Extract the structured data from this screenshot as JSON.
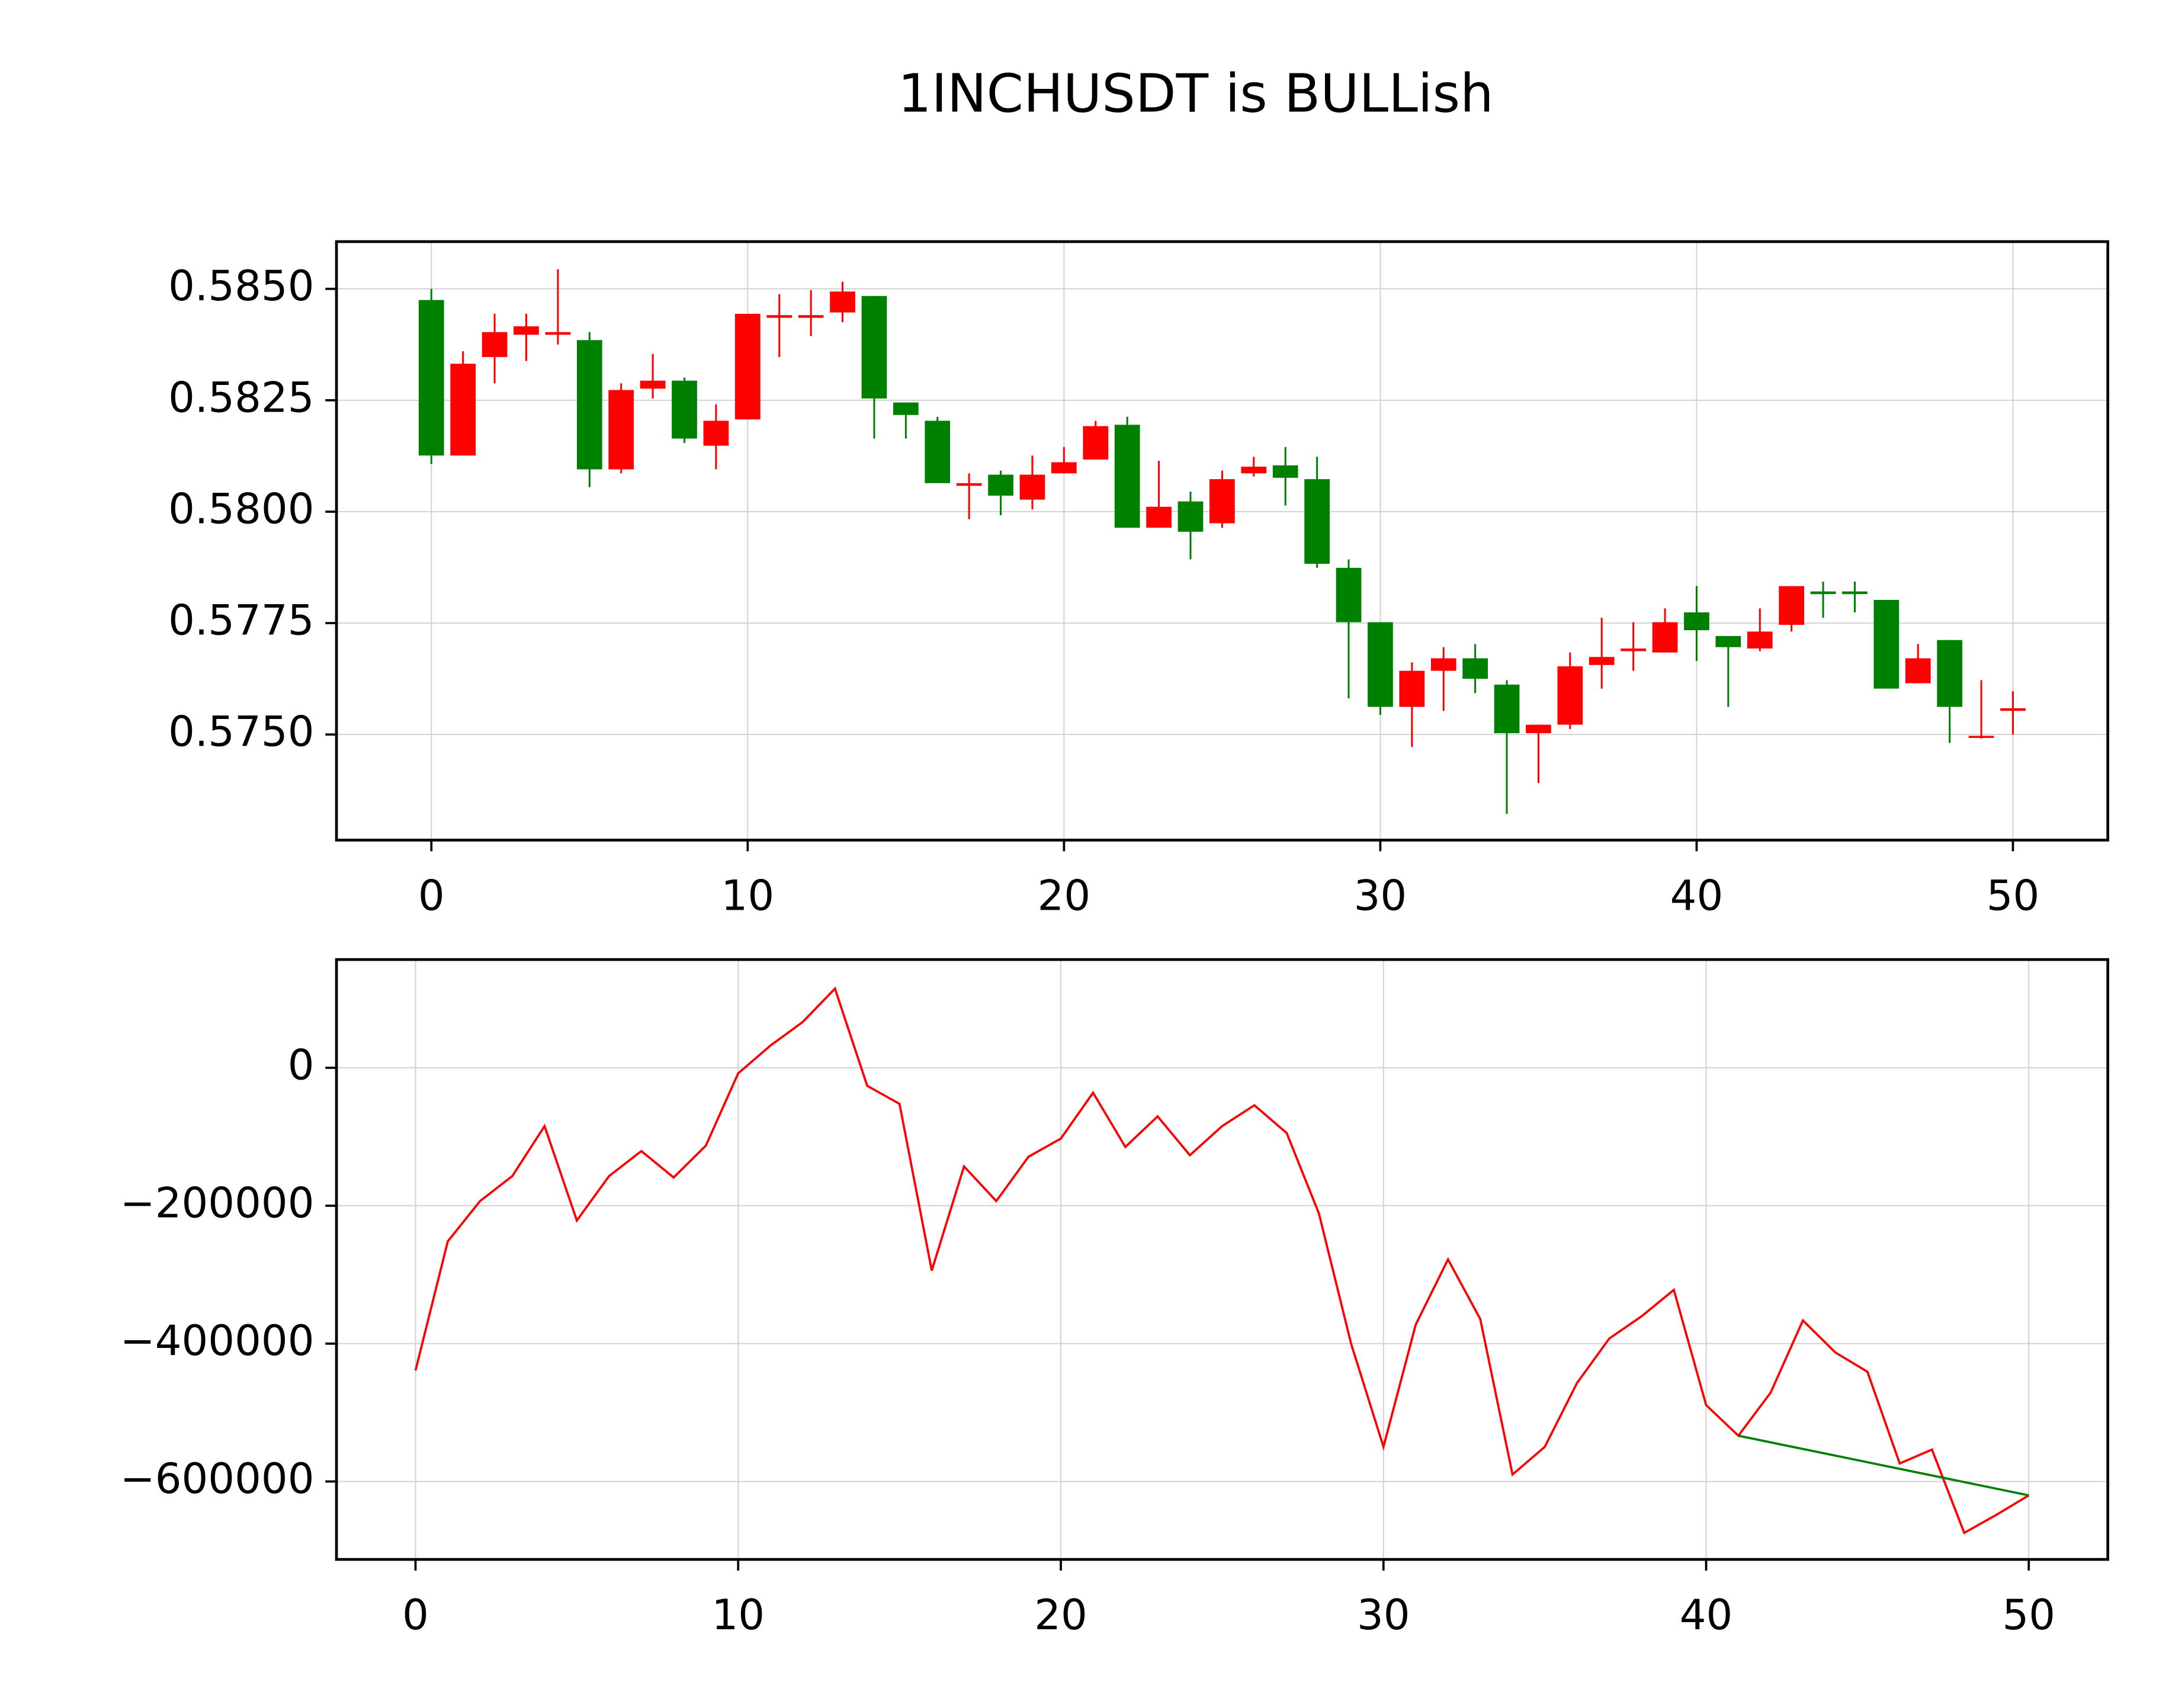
{
  "chart_data": [
    {
      "type": "candlestick",
      "title": "1INCHUSDT is BULLish",
      "up_color": "red",
      "down_color": "green",
      "grid": true,
      "x": [
        0,
        1,
        2,
        3,
        4,
        5,
        6,
        7,
        8,
        9,
        10,
        11,
        12,
        13,
        14,
        15,
        16,
        17,
        18,
        19,
        20,
        21,
        22,
        23,
        24,
        25,
        26,
        27,
        28,
        29,
        30,
        31,
        32,
        33,
        34,
        35,
        36,
        37,
        38,
        39,
        40,
        41,
        42,
        43,
        44,
        45,
        46,
        47,
        48,
        49,
        50
      ],
      "open": [
        0.58475,
        0.58126,
        0.58347,
        0.58397,
        0.58397,
        0.58385,
        0.58095,
        0.58276,
        0.58294,
        0.58148,
        0.58207,
        0.58435,
        0.58435,
        0.58447,
        0.58484,
        0.58245,
        0.58204,
        0.58058,
        0.58083,
        0.58027,
        0.58086,
        0.58117,
        0.58195,
        0.57964,
        0.58023,
        0.57974,
        0.58086,
        0.58104,
        0.58073,
        0.57874,
        0.57752,
        0.57562,
        0.57643,
        0.57671,
        0.57612,
        0.57503,
        0.57522,
        0.57656,
        0.57687,
        0.57684,
        0.57774,
        0.57721,
        0.57693,
        0.57746,
        0.57821,
        0.57821,
        0.57802,
        0.57615,
        0.57712,
        0.57494,
        0.57553
      ],
      "high": [
        0.585,
        0.5836,
        0.58444,
        0.58444,
        0.58544,
        0.58403,
        0.58288,
        0.58354,
        0.58301,
        0.58241,
        0.58444,
        0.58488,
        0.58497,
        0.58516,
        0.58484,
        0.58245,
        0.58213,
        0.58086,
        0.58092,
        0.58126,
        0.58145,
        0.58204,
        0.58213,
        0.58114,
        0.58045,
        0.58092,
        0.58123,
        0.58145,
        0.58123,
        0.57893,
        0.57752,
        0.57662,
        0.57696,
        0.57703,
        0.57622,
        0.57522,
        0.57684,
        0.57762,
        0.57752,
        0.57783,
        0.57833,
        0.57721,
        0.57783,
        0.57833,
        0.57843,
        0.57843,
        0.57802,
        0.57703,
        0.57712,
        0.57622,
        0.57597
      ],
      "low": [
        0.58107,
        0.58126,
        0.58288,
        0.58338,
        0.58375,
        0.58055,
        0.58086,
        0.58254,
        0.58154,
        0.58095,
        0.58207,
        0.58347,
        0.58394,
        0.58425,
        0.58164,
        0.58164,
        0.58064,
        0.57983,
        0.57992,
        0.58005,
        0.58086,
        0.58117,
        0.57964,
        0.57964,
        0.57893,
        0.57964,
        0.58079,
        0.58014,
        0.57874,
        0.57581,
        0.57544,
        0.57472,
        0.57553,
        0.57593,
        0.57322,
        0.57391,
        0.57512,
        0.57603,
        0.57643,
        0.57684,
        0.57665,
        0.57562,
        0.57687,
        0.57731,
        0.57762,
        0.57774,
        0.57603,
        0.57615,
        0.57481,
        0.57491,
        0.575
      ],
      "close": [
        0.58126,
        0.58332,
        0.58403,
        0.58416,
        0.58403,
        0.58095,
        0.58273,
        0.58294,
        0.58164,
        0.58204,
        0.58444,
        0.58441,
        0.58441,
        0.58494,
        0.58254,
        0.58217,
        0.58064,
        0.58064,
        0.58036,
        0.58083,
        0.58111,
        0.58192,
        0.57964,
        0.58011,
        0.57955,
        0.58073,
        0.58101,
        0.58076,
        0.57883,
        0.57752,
        0.57562,
        0.57643,
        0.57671,
        0.57625,
        0.57503,
        0.57522,
        0.57653,
        0.57674,
        0.57693,
        0.57752,
        0.57734,
        0.57696,
        0.57731,
        0.57833,
        0.57815,
        0.57815,
        0.57603,
        0.57671,
        0.57562,
        0.57497,
        0.57559
      ],
      "xlim": [
        -3,
        53
      ],
      "ylim": [
        0.57263,
        0.58606
      ],
      "xticks": [
        0,
        10,
        20,
        30,
        40,
        50
      ],
      "yticks": [
        {
          "value": 0.575,
          "label": "0.5750"
        },
        {
          "value": 0.5775,
          "label": "0.5775"
        },
        {
          "value": 0.58,
          "label": "0.5800"
        },
        {
          "value": 0.5825,
          "label": "0.5825"
        },
        {
          "value": 0.585,
          "label": "0.5850"
        }
      ]
    },
    {
      "type": "line",
      "grid": true,
      "series": [
        {
          "color": "red",
          "x": [
            0,
            1,
            2,
            3,
            4,
            5,
            6,
            7,
            8,
            9,
            10,
            11,
            12,
            13,
            14,
            15,
            16,
            17,
            18,
            19,
            20,
            21,
            22,
            23,
            24,
            25,
            26,
            27,
            28,
            29,
            30,
            31,
            32,
            33,
            34,
            35,
            36,
            37,
            38,
            39,
            40,
            41,
            42,
            43,
            44,
            45,
            46,
            47,
            48,
            49,
            50
          ],
          "values": [
            -439000,
            -251700,
            -193300,
            -157000,
            -84600,
            -221500,
            -157000,
            -120800,
            -159100,
            -112800,
            -8100,
            32200,
            66400,
            114800,
            -26200,
            -52300,
            -294000,
            -143000,
            -193300,
            -128900,
            -102700,
            -36200,
            -114800,
            -70500,
            -126800,
            -84600,
            -54400,
            -94600,
            -211400,
            -400700,
            -549700,
            -372500,
            -277900,
            -364400,
            -589900,
            -549700,
            -457000,
            -392600,
            -360400,
            -322100,
            -489200,
            -533600,
            -471100,
            -366400,
            -412700,
            -440900,
            -573800,
            -553700,
            -674500,
            -648300,
            -620100
          ]
        },
        {
          "color": "green",
          "x": [
            41,
            50
          ],
          "values": [
            -533600,
            -620100
          ]
        }
      ],
      "xlim": [
        -2.45,
        52.45
      ],
      "ylim": [
        -713000,
        157000
      ],
      "xticks": [
        0,
        10,
        20,
        30,
        40,
        50
      ],
      "yticks": [
        {
          "value": -600000,
          "label": "−600000"
        },
        {
          "value": -400000,
          "label": "−400000"
        },
        {
          "value": -200000,
          "label": "−200000"
        },
        0
      ]
    }
  ]
}
